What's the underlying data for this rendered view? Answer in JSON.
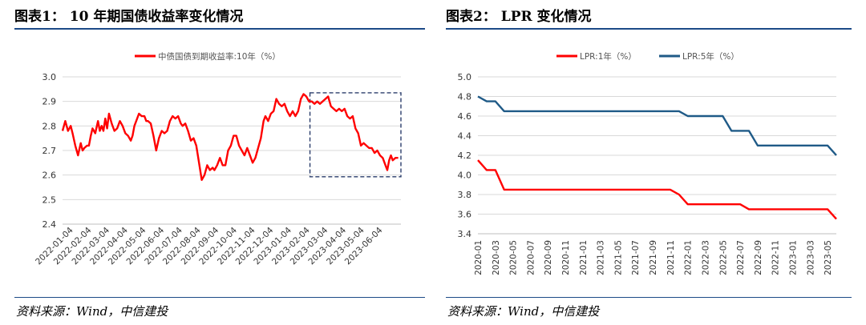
{
  "left_panel": {
    "title": "图表1： 10 年期国债收益率变化情况",
    "source": "资料来源：Wind，中信建投"
  },
  "right_panel": {
    "title": "图表2： LPR 变化情况",
    "source": "资料来源：Wind，中信建投"
  },
  "colors": {
    "red": "#ff0000",
    "blue": "#1f5a87",
    "rule": "#1c4a87",
    "grid": "#d9d9d9",
    "box": "#2a3d6b"
  },
  "chart_data": [
    {
      "type": "line",
      "title": "",
      "legend": [
        "中债国债到期收益率:10年（%）"
      ],
      "ylim": [
        2.4,
        3.0
      ],
      "yticks": [
        "3.0",
        "2.9",
        "2.8",
        "2.7",
        "2.6",
        "2.5",
        "2.4"
      ],
      "xticks": [
        "2022-01-04",
        "2022-02-04",
        "2022-03-04",
        "2022-04-04",
        "2022-05-04",
        "2022-06-04",
        "2022-07-04",
        "2022-08-04",
        "2022-09-04",
        "2022-10-04",
        "2022-11-04",
        "2022-12-04",
        "2023-01-04",
        "2023-02-04",
        "2023-03-04",
        "2023-04-04",
        "2023-05-04",
        "2023-06-04"
      ],
      "grid": true,
      "annotation": "dashed box highlighting 2023-03 to 2023-06 decline",
      "highlight_range": {
        "x": [
          13.6,
          18.6
        ],
        "y": [
          2.593,
          2.935
        ]
      },
      "series": [
        {
          "name": "中债国债到期收益率:10年（%）",
          "x": [
            0,
            0.15,
            0.3,
            0.45,
            0.55,
            0.7,
            0.85,
            1.0,
            1.1,
            1.2,
            1.35,
            1.45,
            1.55,
            1.65,
            1.8,
            1.95,
            2.05,
            2.15,
            2.25,
            2.35,
            2.45,
            2.55,
            2.7,
            2.85,
            3.0,
            3.15,
            3.3,
            3.45,
            3.6,
            3.75,
            3.85,
            3.95,
            4.05,
            4.2,
            4.35,
            4.5,
            4.6,
            4.7,
            4.85,
            5.0,
            5.15,
            5.3,
            5.45,
            5.6,
            5.75,
            5.9,
            6.05,
            6.2,
            6.35,
            6.5,
            6.6,
            6.75,
            6.9,
            7.05,
            7.2,
            7.35,
            7.5,
            7.65,
            7.8,
            7.95,
            8.1,
            8.25,
            8.35,
            8.5,
            8.65,
            8.8,
            8.95,
            9.1,
            9.25,
            9.4,
            9.55,
            9.7,
            9.85,
            10.0,
            10.15,
            10.3,
            10.45,
            10.6,
            10.75,
            10.9,
            11.05,
            11.15,
            11.3,
            11.45,
            11.6,
            11.75,
            11.9,
            12.05,
            12.2,
            12.35,
            12.5,
            12.65,
            12.8,
            12.95,
            13.1,
            13.25,
            13.4,
            13.55,
            13.7,
            13.85,
            14.0,
            14.15,
            14.3,
            14.45,
            14.6,
            14.75,
            14.9,
            15.05,
            15.2,
            15.35,
            15.5,
            15.65,
            15.8,
            15.95,
            16.1,
            16.25,
            16.4,
            16.55,
            16.7,
            16.85,
            17.0,
            17.15,
            17.3,
            17.45,
            17.6,
            17.75,
            17.85,
            17.95,
            18.05,
            18.15,
            18.3,
            18.45
          ],
          "values": [
            2.78,
            2.82,
            2.78,
            2.8,
            2.77,
            2.72,
            2.68,
            2.73,
            2.7,
            2.71,
            2.72,
            2.72,
            2.76,
            2.79,
            2.77,
            2.82,
            2.78,
            2.8,
            2.78,
            2.83,
            2.79,
            2.85,
            2.81,
            2.78,
            2.79,
            2.82,
            2.8,
            2.77,
            2.76,
            2.74,
            2.76,
            2.8,
            2.82,
            2.85,
            2.84,
            2.84,
            2.82,
            2.82,
            2.81,
            2.76,
            2.7,
            2.75,
            2.78,
            2.77,
            2.78,
            2.82,
            2.84,
            2.83,
            2.84,
            2.81,
            2.8,
            2.81,
            2.78,
            2.74,
            2.75,
            2.72,
            2.65,
            2.58,
            2.6,
            2.64,
            2.62,
            2.63,
            2.62,
            2.64,
            2.67,
            2.64,
            2.64,
            2.7,
            2.72,
            2.76,
            2.76,
            2.72,
            2.7,
            2.68,
            2.71,
            2.68,
            2.65,
            2.67,
            2.71,
            2.75,
            2.82,
            2.84,
            2.82,
            2.85,
            2.86,
            2.91,
            2.89,
            2.88,
            2.89,
            2.86,
            2.84,
            2.86,
            2.84,
            2.86,
            2.91,
            2.93,
            2.92,
            2.9,
            2.9,
            2.89,
            2.9,
            2.89,
            2.9,
            2.91,
            2.92,
            2.88,
            2.87,
            2.86,
            2.87,
            2.86,
            2.87,
            2.84,
            2.83,
            2.84,
            2.79,
            2.77,
            2.72,
            2.73,
            2.72,
            2.71,
            2.71,
            2.69,
            2.7,
            2.68,
            2.67,
            2.64,
            2.62,
            2.66,
            2.68,
            2.66,
            2.67,
            2.67
          ]
        }
      ]
    },
    {
      "type": "line",
      "title": "",
      "legend": [
        "LPR:1年（%）",
        "LPR:5年（%）"
      ],
      "ylim": [
        3.4,
        5.0
      ],
      "yticks": [
        "5.0",
        "4.8",
        "4.6",
        "4.4",
        "4.2",
        "4.0",
        "3.8",
        "3.6",
        "3.4"
      ],
      "xticks": [
        "2020-01",
        "2020-03",
        "2020-05",
        "2020-07",
        "2020-09",
        "2020-11",
        "2021-01",
        "2021-03",
        "2021-05",
        "2021-07",
        "2021-09",
        "2021-11",
        "2022-01",
        "2022-03",
        "2022-05",
        "2022-07",
        "2022-09",
        "2022-11",
        "2023-01",
        "2023-03",
        "2023-05"
      ],
      "grid": true,
      "series": [
        {
          "name": "LPR:1年（%）",
          "x": [
            0,
            1,
            2,
            3,
            4,
            5,
            6,
            7,
            8,
            9,
            10,
            11,
            12,
            13,
            14,
            15,
            16,
            17,
            18,
            19,
            20,
            21,
            22,
            23,
            24,
            25,
            26,
            27,
            28,
            29,
            30,
            31,
            32,
            33,
            34,
            35,
            36,
            37,
            38,
            39,
            40,
            41
          ],
          "values": [
            4.15,
            4.05,
            4.05,
            3.85,
            3.85,
            3.85,
            3.85,
            3.85,
            3.85,
            3.85,
            3.85,
            3.85,
            3.85,
            3.85,
            3.85,
            3.85,
            3.85,
            3.85,
            3.85,
            3.85,
            3.85,
            3.85,
            3.85,
            3.8,
            3.7,
            3.7,
            3.7,
            3.7,
            3.7,
            3.7,
            3.7,
            3.65,
            3.65,
            3.65,
            3.65,
            3.65,
            3.65,
            3.65,
            3.65,
            3.65,
            3.65,
            3.55
          ]
        },
        {
          "name": "LPR:5年（%）",
          "x": [
            0,
            1,
            2,
            3,
            4,
            5,
            6,
            7,
            8,
            9,
            10,
            11,
            12,
            13,
            14,
            15,
            16,
            17,
            18,
            19,
            20,
            21,
            22,
            23,
            24,
            25,
            26,
            27,
            28,
            29,
            30,
            31,
            32,
            33,
            34,
            35,
            36,
            37,
            38,
            39,
            40,
            41
          ],
          "values": [
            4.8,
            4.75,
            4.75,
            4.65,
            4.65,
            4.65,
            4.65,
            4.65,
            4.65,
            4.65,
            4.65,
            4.65,
            4.65,
            4.65,
            4.65,
            4.65,
            4.65,
            4.65,
            4.65,
            4.65,
            4.65,
            4.65,
            4.65,
            4.65,
            4.6,
            4.6,
            4.6,
            4.6,
            4.6,
            4.45,
            4.45,
            4.45,
            4.3,
            4.3,
            4.3,
            4.3,
            4.3,
            4.3,
            4.3,
            4.3,
            4.3,
            4.2
          ]
        }
      ]
    }
  ]
}
